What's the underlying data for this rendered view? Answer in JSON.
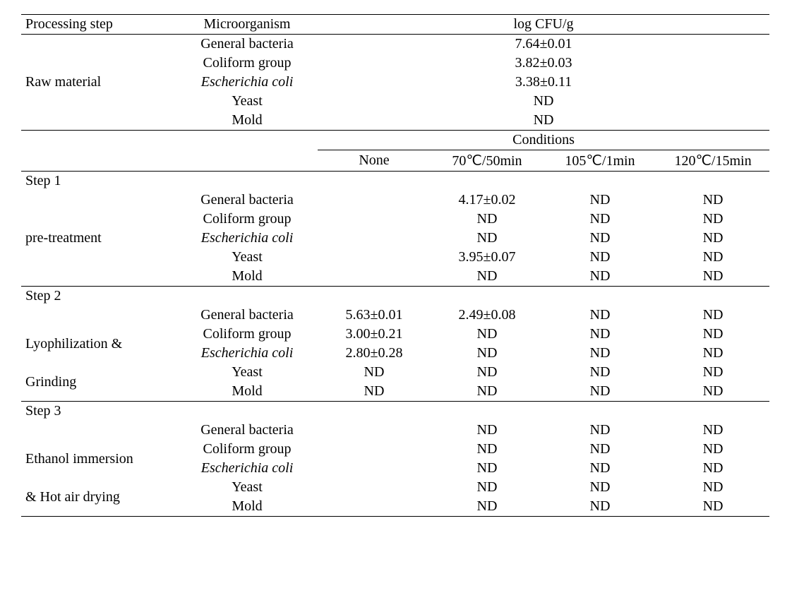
{
  "headers": {
    "processing_step": "Processing step",
    "microorganism": "Microorganism",
    "log_cfu": "log CFU/g",
    "conditions": "Conditions",
    "none": "None",
    "c70": "70℃/50min",
    "c105": "105℃/1min",
    "c120": "120℃/15min"
  },
  "organisms": {
    "general": "General bacteria",
    "coliform": "Coliform group",
    "ecoli": "Escherichia coli",
    "yeast": "Yeast",
    "mold": "Mold"
  },
  "raw": {
    "label": "Raw material",
    "general": "7.64±0.01",
    "coliform": "3.82±0.03",
    "ecoli": "3.38±0.11",
    "yeast": "ND",
    "mold": "ND"
  },
  "step1": {
    "title": "Step 1",
    "label": "pre-treatment",
    "general": {
      "c70": "4.17±0.02",
      "c105": "ND",
      "c120": "ND"
    },
    "coliform": {
      "c70": "ND",
      "c105": "ND",
      "c120": "ND"
    },
    "ecoli": {
      "c70": "ND",
      "c105": "ND",
      "c120": "ND"
    },
    "yeast": {
      "c70": "3.95±0.07",
      "c105": "ND",
      "c120": "ND"
    },
    "mold": {
      "c70": "ND",
      "c105": "ND",
      "c120": "ND"
    }
  },
  "step2": {
    "title": "Step 2",
    "label_l1": "Lyophilization &",
    "label_l2": "Grinding",
    "general": {
      "none": "5.63±0.01",
      "c70": "2.49±0.08",
      "c105": "ND",
      "c120": "ND"
    },
    "coliform": {
      "none": "3.00±0.21",
      "c70": "ND",
      "c105": "ND",
      "c120": "ND"
    },
    "ecoli": {
      "none": "2.80±0.28",
      "c70": "ND",
      "c105": "ND",
      "c120": "ND"
    },
    "yeast": {
      "none": "ND",
      "c70": "ND",
      "c105": "ND",
      "c120": "ND"
    },
    "mold": {
      "none": "ND",
      "c70": "ND",
      "c105": "ND",
      "c120": "ND"
    }
  },
  "step3": {
    "title": "Step 3",
    "label_l1": "Ethanol immersion",
    "label_l2": "& Hot air drying",
    "general": {
      "c70": "ND",
      "c105": "ND",
      "c120": "ND"
    },
    "coliform": {
      "c70": "ND",
      "c105": "ND",
      "c120": "ND"
    },
    "ecoli": {
      "c70": "ND",
      "c105": "ND",
      "c120": "ND"
    },
    "yeast": {
      "c70": "ND",
      "c105": "ND",
      "c120": "ND"
    },
    "mold": {
      "c70": "ND",
      "c105": "ND",
      "c120": "ND"
    }
  }
}
